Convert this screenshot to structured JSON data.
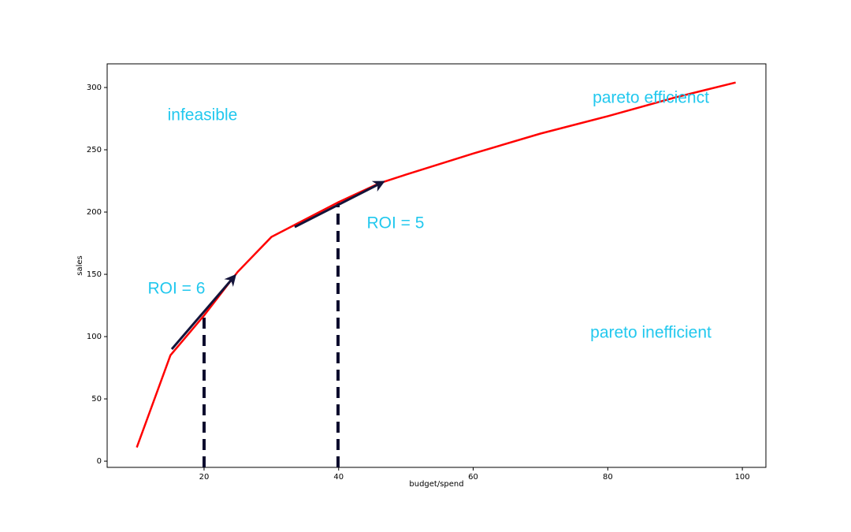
{
  "chart_data": {
    "type": "line",
    "x_label": "budget/spend",
    "y_label": "sales",
    "x": [
      10,
      15,
      20,
      25,
      30,
      40,
      46,
      50,
      60,
      70,
      80,
      90,
      99
    ],
    "values": [
      11,
      85,
      117,
      152,
      180,
      208,
      223,
      230,
      247,
      263,
      277,
      292,
      304
    ],
    "color": "#ff0000",
    "xlim": [
      5.6,
      103.5
    ],
    "xticks": [
      20,
      40,
      60,
      80,
      100
    ],
    "ylim": [
      -5,
      319
    ],
    "yticks": [
      0,
      50,
      100,
      150,
      200,
      250,
      300
    ],
    "grid": false,
    "annotations": [
      "infeasible",
      "pareto efficienct",
      "ROI = 6",
      "ROI = 5",
      "pareto inefficient"
    ],
    "annotation_color": "#22c8ee"
  }
}
